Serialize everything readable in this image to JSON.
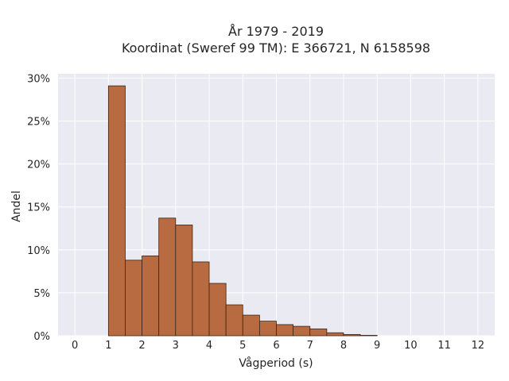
{
  "chart_data": {
    "type": "bar",
    "title_line1": "År 1979 - 2019",
    "title_line2": "Koordinat (Sweref 99 TM): E 366721, N 6158598",
    "xlabel": "Vågperiod (s)",
    "ylabel": "Andel",
    "xlim": [
      -0.5,
      12.5
    ],
    "ylim": [
      0,
      30.5
    ],
    "x_ticks": [
      0,
      1,
      2,
      3,
      4,
      5,
      6,
      7,
      8,
      9,
      10,
      11,
      12
    ],
    "x_tick_labels": [
      "0",
      "1",
      "2",
      "3",
      "4",
      "5",
      "6",
      "7",
      "8",
      "9",
      "10",
      "11",
      "12"
    ],
    "y_ticks": [
      0,
      5,
      10,
      15,
      20,
      25,
      30
    ],
    "y_tick_labels": [
      "0%",
      "5%",
      "10%",
      "15%",
      "20%",
      "25%",
      "30%"
    ],
    "bin_width": 0.5,
    "bins": [
      {
        "x0": 1.0,
        "value": 29.1
      },
      {
        "x0": 1.5,
        "value": 8.8
      },
      {
        "x0": 2.0,
        "value": 9.3
      },
      {
        "x0": 2.5,
        "value": 13.7
      },
      {
        "x0": 3.0,
        "value": 12.9
      },
      {
        "x0": 3.5,
        "value": 8.6
      },
      {
        "x0": 4.0,
        "value": 6.1
      },
      {
        "x0": 4.5,
        "value": 3.6
      },
      {
        "x0": 5.0,
        "value": 2.4
      },
      {
        "x0": 5.5,
        "value": 1.7
      },
      {
        "x0": 6.0,
        "value": 1.3
      },
      {
        "x0": 6.5,
        "value": 1.1
      },
      {
        "x0": 7.0,
        "value": 0.8
      },
      {
        "x0": 7.5,
        "value": 0.35
      },
      {
        "x0": 8.0,
        "value": 0.15
      },
      {
        "x0": 8.5,
        "value": 0.05
      }
    ],
    "grid": true,
    "colors": {
      "bar": "#b86b40",
      "plot_background": "#eaeaf2"
    }
  }
}
